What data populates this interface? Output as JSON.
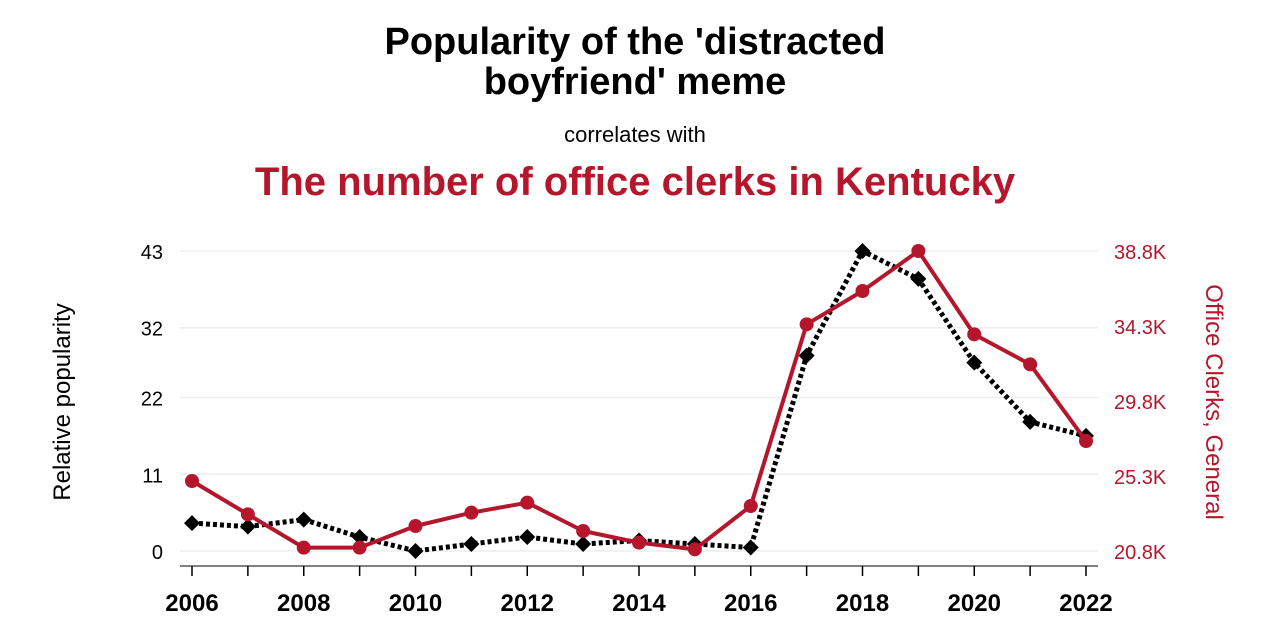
{
  "chart_data": {
    "type": "line",
    "title_line1": "Popularity of the 'distracted",
    "title_line2": "boyfriend' meme",
    "subtitle": "correlates with",
    "title2": "The number of office clerks in Kentucky",
    "ylabel_left": "Relative popularity",
    "ylabel_right": "Office Clerks, General",
    "x": [
      2006,
      2007,
      2008,
      2009,
      2010,
      2011,
      2012,
      2013,
      2014,
      2015,
      2016,
      2017,
      2018,
      2019,
      2020,
      2021,
      2022
    ],
    "x_ticks": [
      "2006",
      "2008",
      "2010",
      "2012",
      "2014",
      "2016",
      "2018",
      "2020",
      "2022"
    ],
    "y_left_ticks": [
      "43",
      "32",
      "22",
      "11",
      "0"
    ],
    "y_left_tick_values": [
      43,
      32,
      22,
      11,
      0
    ],
    "y_right_ticks": [
      "38.8K",
      "34.3K",
      "29.8K",
      "25.3K",
      "20.8K"
    ],
    "y_right_tick_values": [
      38800,
      34300,
      29800,
      25300,
      20800
    ],
    "ylim_left": [
      0,
      43
    ],
    "ylim_right": [
      20800,
      38800
    ],
    "grid": true,
    "series": [
      {
        "name": "Relative popularity",
        "axis": "left",
        "color": "#000000",
        "marker": "diamond",
        "style": "dotted",
        "values": [
          4,
          3.5,
          4.5,
          2,
          0,
          1,
          2,
          1,
          1.5,
          1,
          0.5,
          28,
          43,
          39,
          27,
          18.5,
          16.5
        ]
      },
      {
        "name": "Office Clerks, General",
        "axis": "right",
        "color": "#b5162b",
        "marker": "circle",
        "style": "solid",
        "values": [
          25000,
          23000,
          21000,
          21000,
          22300,
          23100,
          23700,
          22000,
          21300,
          20900,
          23500,
          34400,
          36400,
          38800,
          33800,
          32000,
          27400
        ]
      }
    ]
  }
}
